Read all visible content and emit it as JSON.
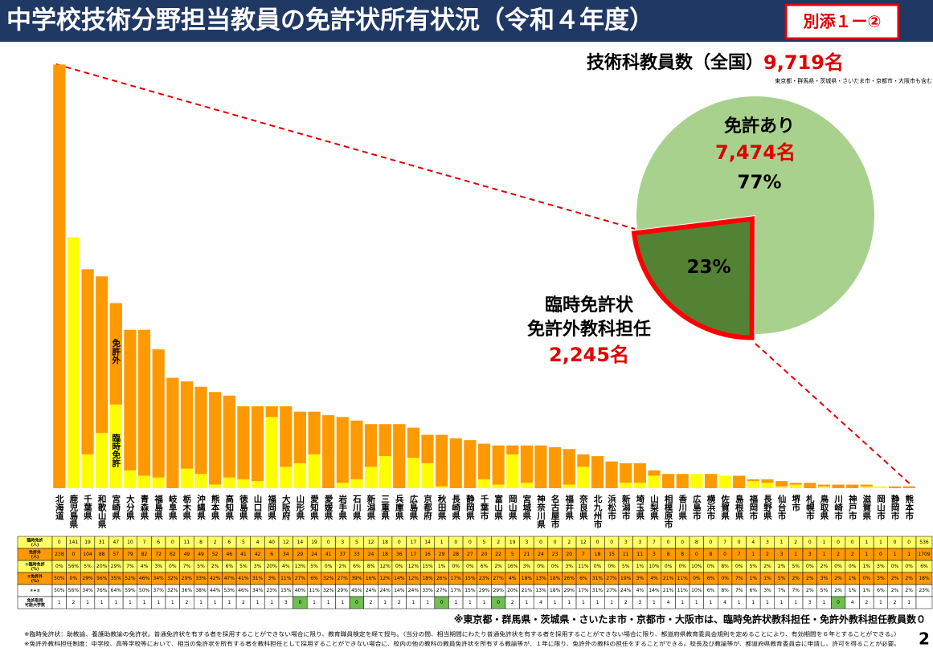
{
  "header": {
    "title": "中学校技術分野担当教員の免許状所有状況（令和４年度）",
    "badge": "別添１ー②"
  },
  "summary": {
    "label": "技術科教員数（全国）",
    "value": "9,719名",
    "note": "東京都・群馬県・茨城県・さいたま市・京都市・大阪市も含む"
  },
  "chart_data": [
    {
      "type": "bar",
      "stacked": true,
      "categories": [
        "北海道",
        "鹿児島県",
        "千葉県",
        "和歌山県",
        "宮崎県",
        "大分県",
        "青森県",
        "福島県",
        "岐阜県",
        "栃木県",
        "沖縄県",
        "熊本県",
        "高知県",
        "徳島県",
        "山口県",
        "福岡県",
        "大阪府",
        "山形県",
        "愛知県",
        "愛媛県",
        "岩手県",
        "石川県",
        "新潟県",
        "三重県",
        "兵庫県",
        "広島県",
        "京都府",
        "秋田県",
        "長崎県",
        "静岡県",
        "千葉市",
        "富山県",
        "岡山県",
        "宮城県",
        "神奈川県",
        "名古屋市",
        "福井県",
        "奈良県",
        "北九州市",
        "浜松市",
        "新潟市",
        "埼玉県",
        "山梨県",
        "相模原市",
        "香川県",
        "広島市",
        "横浜市",
        "佐賀県",
        "島根県",
        "福岡市",
        "長野県",
        "仙台市",
        "堺市",
        "札幌市",
        "鳥取県",
        "川崎市",
        "神戸市",
        "滋賀県",
        "岡山市",
        "静岡市",
        "熊本市"
      ],
      "series": [
        {
          "name": "臨時免許",
          "color": "#ffff00",
          "values": [
            0,
            141,
            19,
            31,
            47,
            10,
            7,
            6,
            0,
            11,
            8,
            2,
            6,
            5,
            4,
            40,
            12,
            14,
            19,
            0,
            3,
            5,
            12,
            18,
            0,
            17,
            14,
            1,
            0,
            0,
            5,
            2,
            19,
            3,
            0,
            0,
            2,
            12,
            0,
            0,
            3,
            3,
            7,
            0,
            0,
            8,
            0,
            7,
            0,
            4,
            3,
            1,
            2,
            0,
            1,
            0,
            0,
            1,
            1,
            0,
            0
          ]
        },
        {
          "name": "免許外",
          "color": "#ff9900",
          "values": [
            238,
            0,
            104,
            88,
            57,
            79,
            82,
            72,
            62,
            49,
            49,
            52,
            46,
            41,
            42,
            6,
            34,
            29,
            24,
            41,
            37,
            33,
            24,
            18,
            36,
            17,
            16,
            29,
            28,
            27,
            20,
            22,
            5,
            21,
            24,
            23,
            20,
            7,
            18,
            15,
            11,
            11,
            3,
            8,
            8,
            0,
            8,
            0,
            7,
            1,
            2,
            3,
            1,
            3,
            1,
            2,
            2,
            1,
            0,
            1,
            1
          ]
        }
      ],
      "ylim": [
        0,
        240
      ]
    },
    {
      "type": "pie",
      "values": [
        77,
        23
      ],
      "value_labels": [
        "77%",
        "23%"
      ],
      "colors": [
        "#a9d18e",
        "#548235"
      ],
      "annotations": {
        "licensed": "免許あり",
        "licensed_count": "7,474名",
        "unlicensed_lines": [
          "臨時免許状",
          "免許外教科担任"
        ],
        "unlicensed_count": "2,245名"
      }
    }
  ],
  "table": {
    "row_headers": [
      [
        "臨時免許",
        "(人)"
      ],
      [
        "免許外",
        "(人)"
      ],
      [
        "①臨時免許",
        "(%)"
      ],
      [
        "②免許外",
        "(%)"
      ],
      [
        "①+②"
      ],
      [
        "免許取得",
        "可能大学数"
      ]
    ],
    "rows": [
      [
        0,
        141,
        19,
        31,
        47,
        10,
        7,
        6,
        0,
        11,
        8,
        2,
        6,
        5,
        4,
        40,
        12,
        14,
        19,
        0,
        3,
        5,
        12,
        18,
        0,
        17,
        14,
        1,
        0,
        0,
        5,
        2,
        19,
        3,
        0,
        0,
        2,
        12,
        0,
        0,
        3,
        3,
        7,
        0,
        0,
        8,
        0,
        7,
        0,
        4,
        3,
        1,
        2,
        0,
        1,
        0,
        0,
        1,
        1,
        0,
        0,
        536
      ],
      [
        238,
        0,
        104,
        88,
        57,
        79,
        82,
        72,
        62,
        49,
        49,
        52,
        46,
        41,
        42,
        6,
        34,
        29,
        24,
        41,
        37,
        33,
        24,
        18,
        36,
        17,
        16,
        29,
        28,
        27,
        20,
        22,
        5,
        21,
        24,
        23,
        20,
        7,
        18,
        15,
        11,
        11,
        3,
        8,
        8,
        0,
        8,
        0,
        7,
        1,
        2,
        3,
        1,
        3,
        1,
        2,
        2,
        1,
        0,
        1,
        1,
        1709
      ],
      [
        "0%",
        "56%",
        "5%",
        "20%",
        "29%",
        "7%",
        "4%",
        "3%",
        "0%",
        "7%",
        "5%",
        "2%",
        "6%",
        "5%",
        "3%",
        "20%",
        "4%",
        "13%",
        "5%",
        "0%",
        "2%",
        "6%",
        "8%",
        "12%",
        "0%",
        "12%",
        "15%",
        "1%",
        "0%",
        "0%",
        "6%",
        "2%",
        "16%",
        "3%",
        "0%",
        "0%",
        "3%",
        "11%",
        "0%",
        "0%",
        "5%",
        "1%",
        "10%",
        "0%",
        "0%",
        "10%",
        "0%",
        "8%",
        "0%",
        "5%",
        "2%",
        "2%",
        "5%",
        "0%",
        "2%",
        "0%",
        "0%",
        "1%",
        "3%",
        "0%",
        "0%",
        "6%"
      ],
      [
        "50%",
        "0%",
        "29%",
        "56%",
        "35%",
        "52%",
        "46%",
        "34%",
        "32%",
        "29%",
        "33%",
        "42%",
        "47%",
        "41%",
        "31%",
        "3%",
        "11%",
        "27%",
        "6%",
        "32%",
        "27%",
        "39%",
        "16%",
        "12%",
        "14%",
        "12%",
        "18%",
        "26%",
        "17%",
        "15%",
        "23%",
        "27%",
        "4%",
        "18%",
        "13%",
        "18%",
        "26%",
        "6%",
        "31%",
        "27%",
        "19%",
        "3%",
        "4%",
        "21%",
        "11%",
        "0%",
        "6%",
        "0%",
        "7%",
        "1%",
        "1%",
        "5%",
        "2%",
        "2%",
        "3%",
        "2%",
        "1%",
        "0%",
        "3%",
        "2%",
        "2%",
        "18%"
      ],
      [
        "50%",
        "56%",
        "34%",
        "76%",
        "64%",
        "59%",
        "50%",
        "37%",
        "32%",
        "36%",
        "38%",
        "44%",
        "53%",
        "46%",
        "34%",
        "23%",
        "15%",
        "40%",
        "11%",
        "32%",
        "29%",
        "45%",
        "24%",
        "24%",
        "14%",
        "24%",
        "33%",
        "27%",
        "17%",
        "15%",
        "29%",
        "29%",
        "20%",
        "21%",
        "13%",
        "18%",
        "29%",
        "17%",
        "31%",
        "27%",
        "24%",
        "4%",
        "14%",
        "21%",
        "11%",
        "10%",
        "6%",
        "8%",
        "7%",
        "6%",
        "3%",
        "7%",
        "7%",
        "2%",
        "5%",
        "2%",
        "1%",
        "1%",
        "6%",
        "2%",
        "2%",
        "23%"
      ],
      [
        1,
        2,
        1,
        1,
        1,
        1,
        1,
        1,
        1,
        2,
        1,
        1,
        1,
        2,
        1,
        1,
        3,
        0,
        1,
        1,
        1,
        0,
        2,
        1,
        2,
        1,
        1,
        0,
        1,
        1,
        1,
        0,
        2,
        1,
        4,
        1,
        1,
        1,
        1,
        1,
        2,
        3,
        1,
        4,
        1,
        1,
        1,
        4,
        1,
        1,
        1,
        1,
        1,
        3,
        1,
        0,
        4,
        2,
        1,
        2,
        1
      ]
    ]
  },
  "footnotes": {
    "zero_note": "※東京都・群馬県・茨城県・さいたま市・京都市・大阪市は、臨時免許状教科担任・免許外教科担任教員数０",
    "lines": [
      "※臨時免許状：助教諭、養護助教諭の免許状。普通免許状を有する者を採用することができない場合に限り、教育職員検定を経て授与。（当分の間、相当期間にわたり普通免許状を有する者を採用することができない場合に限り、都道府県教育委員会規則を定めることにより、有効期間を６年とすることができる。）",
      "※免許外教科担任制度：中学校、高等学校等において、相当の免許状を所有する者を教科担任として採用することができない場合に、校内の他の教科の教員免許状を所有する教諭等が、１年に限り、免許外の教科の担任をすることができる。校長及び教諭等が、都道府県教育委員会に申請し、許可を得ることが必要。"
    ]
  },
  "page_number": "2"
}
